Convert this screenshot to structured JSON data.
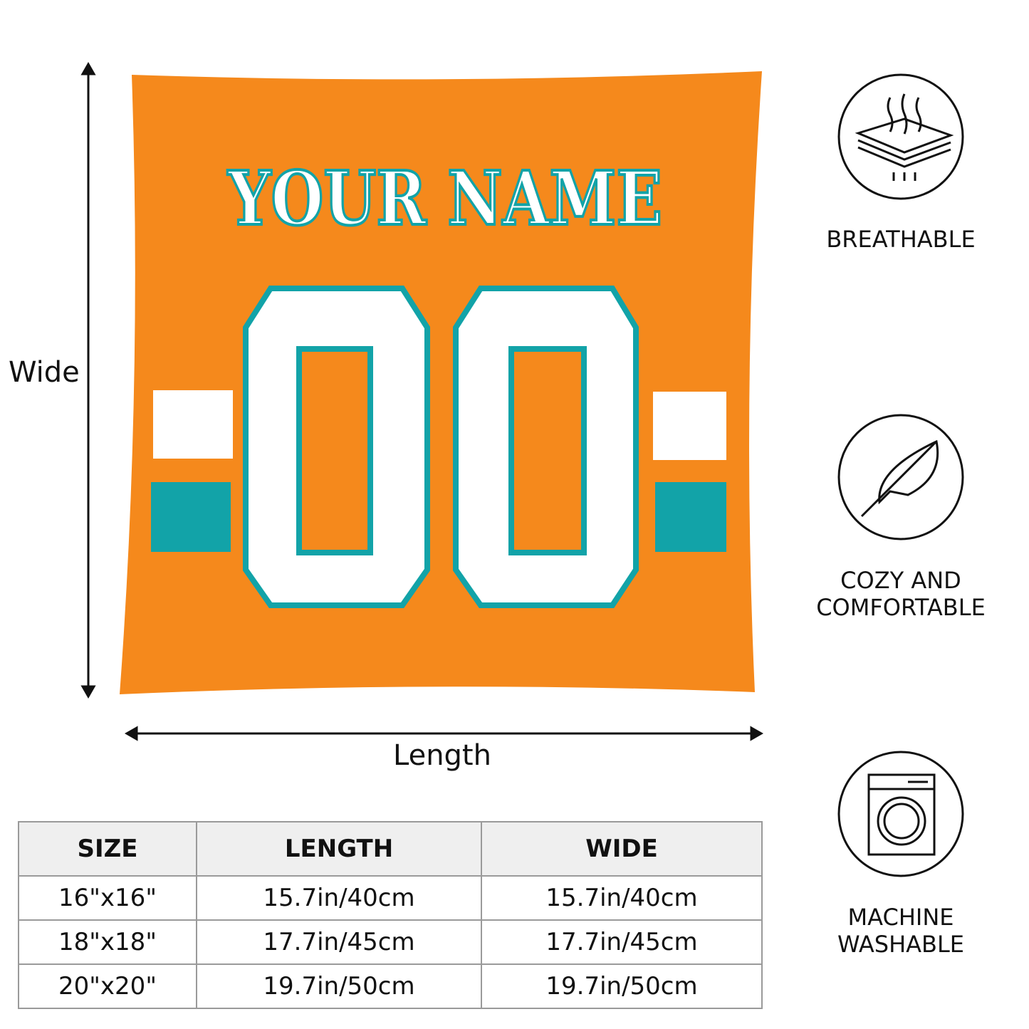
{
  "colors": {
    "orange": "#f5891c",
    "teal": "#12a3a8",
    "white": "#ffffff"
  },
  "pillow": {
    "name_text": "YOUR NAME",
    "number_text": "00"
  },
  "dimensions": {
    "vertical_label": "Wide",
    "horizontal_label": "Length"
  },
  "size_table": {
    "headers": [
      "SIZE",
      "LENGTH",
      "WIDE"
    ],
    "rows": [
      [
        "16\"x16\"",
        "15.7in/40cm",
        "15.7in/40cm"
      ],
      [
        "18\"x18\"",
        "17.7in/45cm",
        "17.7in/45cm"
      ],
      [
        "20\"x20\"",
        "19.7in/50cm",
        "19.7in/50cm"
      ]
    ]
  },
  "features": [
    {
      "icon": "breathable-layers-icon",
      "label_lines": [
        "BREATHABLE"
      ]
    },
    {
      "icon": "feather-icon",
      "label_lines": [
        "COZY AND",
        "COMFORTABLE"
      ]
    },
    {
      "icon": "washing-machine-icon",
      "label_lines": [
        "MACHINE",
        "WASHABLE"
      ]
    }
  ]
}
